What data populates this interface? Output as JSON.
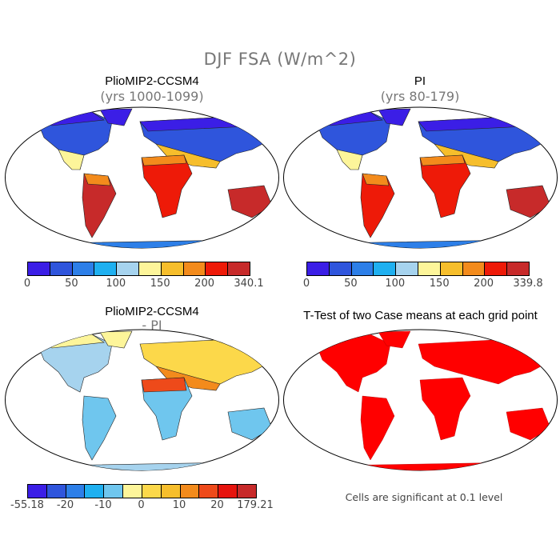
{
  "figure": {
    "title": "DJF FSA (W/m^2)"
  },
  "panels": {
    "top_left": {
      "title": "PlioMIP2-CCSM4",
      "subtitle": "(yrs 1000-1099)"
    },
    "top_right": {
      "title": "PI",
      "subtitle": "(yrs 80-179)"
    },
    "bottom_left": {
      "title": "PlioMIP2-CCSM4",
      "subtitle": "- PI"
    },
    "bottom_right": {
      "title": "T-Test of two Case means at each grid point",
      "note": "Cells are significant at 0.1 level"
    }
  },
  "colorbars": {
    "abs_left": {
      "colors": [
        "#3b1ee6",
        "#2f55dc",
        "#2d7fe8",
        "#1fb0f0",
        "#a6d3ee",
        "#fdf59a",
        "#f6be2c",
        "#f38b1c",
        "#ee1a08",
        "#c72a2a"
      ],
      "labels": [
        "0",
        "50",
        "100",
        "150",
        "200",
        "340.1"
      ]
    },
    "abs_right": {
      "colors": [
        "#3b1ee6",
        "#2f55dc",
        "#2d7fe8",
        "#1fb0f0",
        "#a6d3ee",
        "#fdf59a",
        "#f6be2c",
        "#f38b1c",
        "#ee1a08",
        "#c72a2a"
      ],
      "labels": [
        "0",
        "50",
        "100",
        "150",
        "200",
        "339.8"
      ]
    },
    "diff": {
      "colors": [
        "#3b1ee6",
        "#2f55dc",
        "#2d7fe8",
        "#1fb0f0",
        "#6fc6ee",
        "#fdf59a",
        "#fcd84a",
        "#f6be2c",
        "#f38b1c",
        "#ee4a1a",
        "#e6140e",
        "#c72a2a"
      ],
      "labels": [
        "-55.18",
        "-20",
        "-10",
        "0",
        "10",
        "20",
        "179.21"
      ]
    }
  },
  "palette": {
    "ocean": "#ffffff",
    "coast": "#222222",
    "signif": "#ff0000"
  }
}
